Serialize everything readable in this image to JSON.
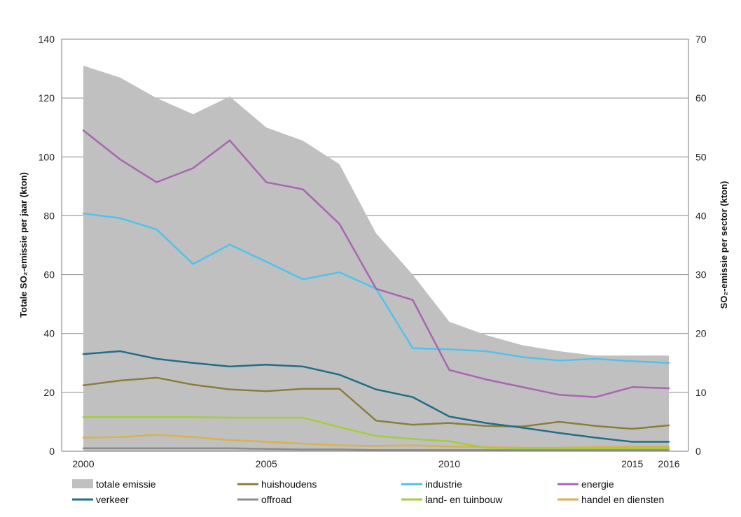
{
  "chart_data": {
    "type": "line",
    "x": [
      2000,
      2001,
      2002,
      2003,
      2004,
      2005,
      2006,
      2007,
      2008,
      2009,
      2010,
      2011,
      2012,
      2013,
      2014,
      2015,
      2016
    ],
    "x_tick_labels": [
      "2000",
      "2005",
      "2010",
      "2015",
      "2016"
    ],
    "x_tick_values": [
      2000,
      2005,
      2010,
      2015,
      2016
    ],
    "xlim": [
      2000,
      2016
    ],
    "ylabel_left": "Totale SO₂-emissie per jaar (kton)",
    "ylabel_right": "SO₂-emissie per sector (kton)",
    "ylim_left": [
      0,
      140
    ],
    "ylim_right": [
      0,
      70
    ],
    "y_ticks_left": [
      "0",
      "20",
      "40",
      "60",
      "80",
      "100",
      "120",
      "140"
    ],
    "y_ticks_right": [
      "0",
      "10",
      "20",
      "30",
      "40",
      "50",
      "60",
      "70"
    ],
    "grid": true,
    "legend_position": "bottom",
    "area": {
      "name": "totale emissie",
      "color": "#c0c0c0",
      "axis": "left",
      "values": [
        131,
        127,
        120,
        114.5,
        120.5,
        110,
        105.5,
        97.5,
        74,
        60,
        44,
        39.5,
        36,
        34,
        32.5,
        32.5,
        32.5
      ]
    },
    "series": [
      {
        "name": "huishoudens",
        "color": "#8b7d3a",
        "axis": "right",
        "values": [
          11.2,
          12,
          12.5,
          11.3,
          10.5,
          10.2,
          10.6,
          10.6,
          5.2,
          4.5,
          4.8,
          4.3,
          4.2,
          5,
          4.3,
          3.8,
          4.4
        ]
      },
      {
        "name": "industrie",
        "color": "#4ec3ee",
        "axis": "right",
        "values": [
          40.4,
          39.6,
          37.7,
          31.8,
          35.1,
          32.2,
          29.2,
          30.4,
          27.6,
          17.5,
          17.3,
          17,
          16,
          15.4,
          15.7,
          15.3,
          15
        ]
      },
      {
        "name": "energie",
        "color": "#a866b0",
        "axis": "right",
        "values": [
          54.5,
          49.6,
          45.7,
          48.1,
          52.8,
          45.7,
          44.5,
          38.6,
          27.6,
          25.7,
          13.8,
          12.2,
          10.9,
          9.6,
          9.2,
          10.9,
          10.7
        ]
      },
      {
        "name": "verkeer",
        "color": "#1f6e8a",
        "axis": "right",
        "values": [
          16.5,
          17,
          15.7,
          15,
          14.4,
          14.7,
          14.4,
          13,
          10.5,
          9.2,
          5.9,
          4.8,
          4,
          3.1,
          2.3,
          1.6,
          1.6
        ]
      },
      {
        "name": "offroad",
        "color": "#8c8c8c",
        "axis": "right",
        "values": [
          0.5,
          0.5,
          0.5,
          0.5,
          0.5,
          0.4,
          0.3,
          0.3,
          0.2,
          0.2,
          0.2,
          0.2,
          0.2,
          0.2,
          0.2,
          0.2,
          0.2
        ]
      },
      {
        "name": "land- en tuinbouw",
        "color": "#a3cd3b",
        "axis": "right",
        "values": [
          5.8,
          5.8,
          5.8,
          5.8,
          5.7,
          5.7,
          5.7,
          4.1,
          2.6,
          2.1,
          1.7,
          0.6,
          0.5,
          0.5,
          0.5,
          0.5,
          0.5
        ]
      },
      {
        "name": "handel en diensten",
        "color": "#d8b24a",
        "axis": "right",
        "values": [
          2.3,
          2.4,
          2.8,
          2.4,
          1.9,
          1.6,
          1.3,
          1,
          0.9,
          1,
          0.8,
          0.7,
          0.6,
          0.6,
          0.7,
          0.8,
          0.8
        ]
      }
    ],
    "legend": [
      {
        "name": "totale emissie",
        "color": "#c0c0c0",
        "kind": "area"
      },
      {
        "name": "huishoudens",
        "color": "#8b7d3a",
        "kind": "line"
      },
      {
        "name": "industrie",
        "color": "#4ec3ee",
        "kind": "line"
      },
      {
        "name": "energie",
        "color": "#a866b0",
        "kind": "line"
      },
      {
        "name": "verkeer",
        "color": "#1f6e8a",
        "kind": "line"
      },
      {
        "name": "offroad",
        "color": "#8c8c8c",
        "kind": "line"
      },
      {
        "name": "land- en tuinbouw",
        "color": "#a3cd3b",
        "kind": "line"
      },
      {
        "name": "handel en diensten",
        "color": "#d8b24a",
        "kind": "line"
      }
    ]
  }
}
